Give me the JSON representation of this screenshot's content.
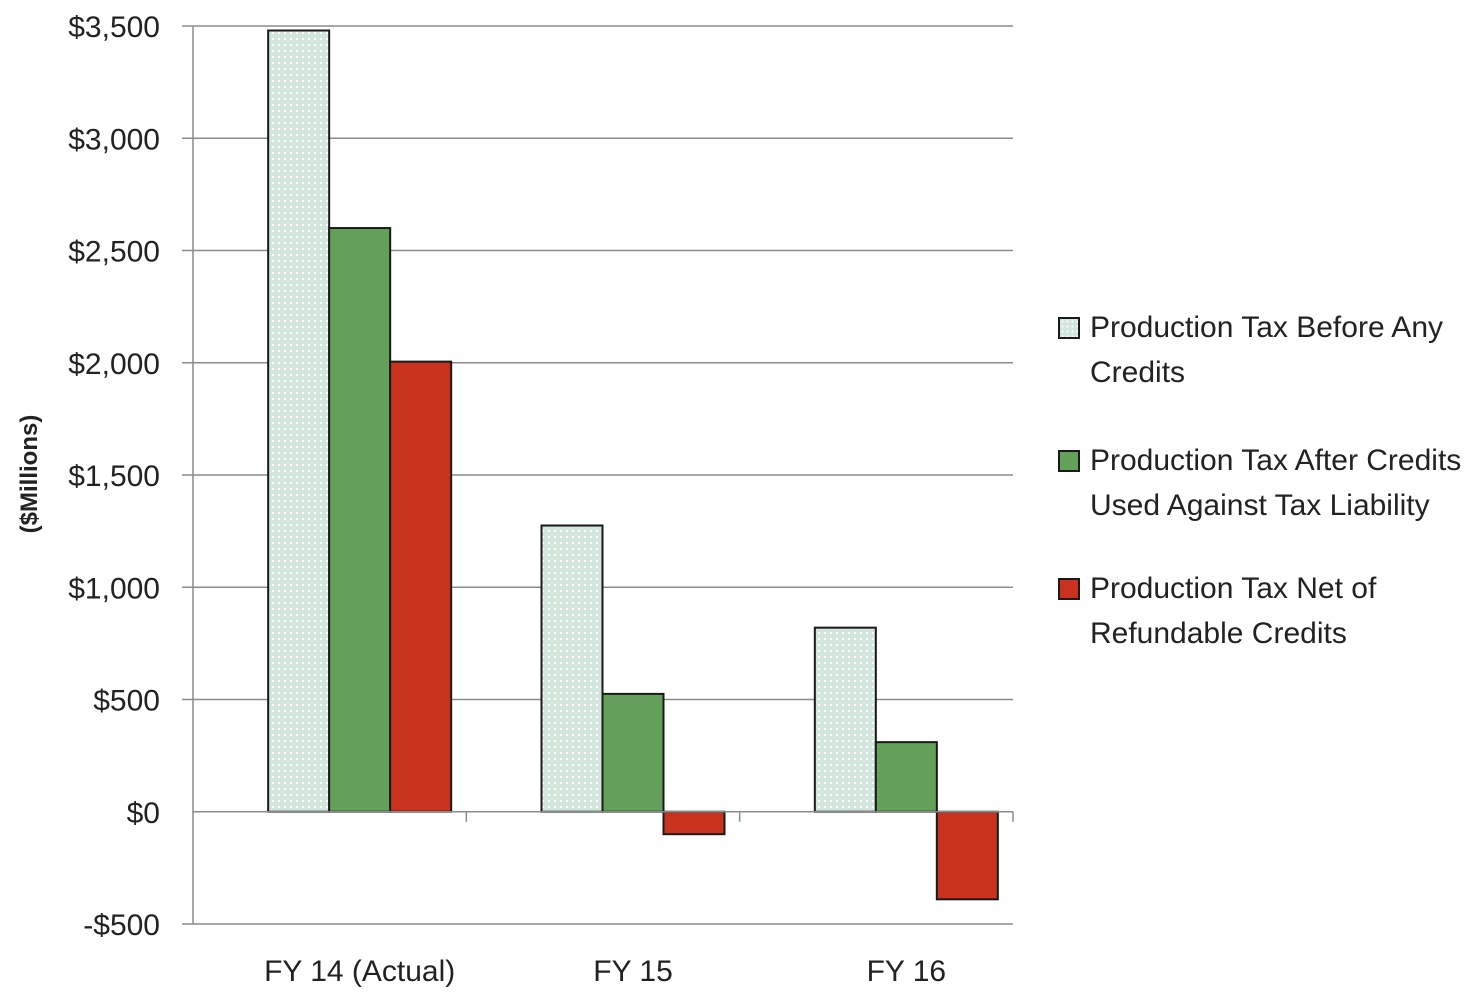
{
  "chart_data": {
    "type": "bar",
    "categories": [
      "FY 14 (Actual)",
      "FY 15",
      "FY 16"
    ],
    "series": [
      {
        "name": "Production Tax Before Any Credits",
        "values": [
          3480,
          1275,
          820
        ],
        "color": "#cfe3da",
        "pattern": "dotted"
      },
      {
        "name": "Production Tax After Credits Used Against Tax Liability",
        "values": [
          2600,
          525,
          310
        ],
        "color": "#63a15a"
      },
      {
        "name": "Production Tax Net of Refundable Credits",
        "values": [
          2005,
          -100,
          -390
        ],
        "color": "#c9321f"
      }
    ],
    "title": "",
    "xlabel": "",
    "ylabel": "($Millions)",
    "ylim": [
      -500,
      3500
    ],
    "yticks": [
      -500,
      0,
      500,
      1000,
      1500,
      2000,
      2500,
      3000,
      3500
    ],
    "ytick_labels": [
      "-$500",
      "$0",
      "$500",
      "$1,000",
      "$1,500",
      "$2,000",
      "$2,500",
      "$3,000",
      "$3,500"
    ],
    "grid": true,
    "legend_position": "right"
  }
}
